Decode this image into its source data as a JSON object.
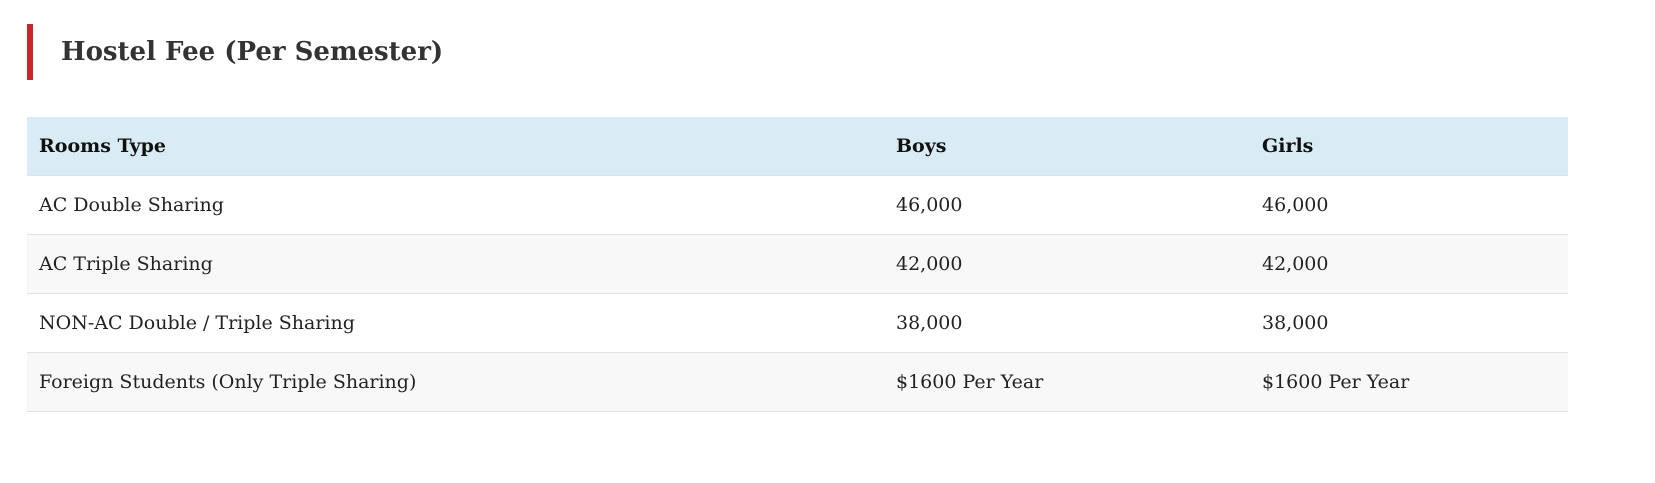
{
  "header": {
    "title": "Hostel Fee (Per Semester)"
  },
  "table": {
    "columns": [
      "Rooms Type",
      "Boys",
      "Girls"
    ],
    "rows": [
      [
        "AC Double Sharing",
        "46,000",
        "46,000"
      ],
      [
        "AC Triple Sharing",
        "42,000",
        "42,000"
      ],
      [
        "NON-AC Double / Triple Sharing",
        "38,000",
        "38,000"
      ],
      [
        "Foreign Students (Only Triple Sharing)",
        "$1600 Per Year",
        "$1600 Per Year"
      ]
    ]
  }
}
